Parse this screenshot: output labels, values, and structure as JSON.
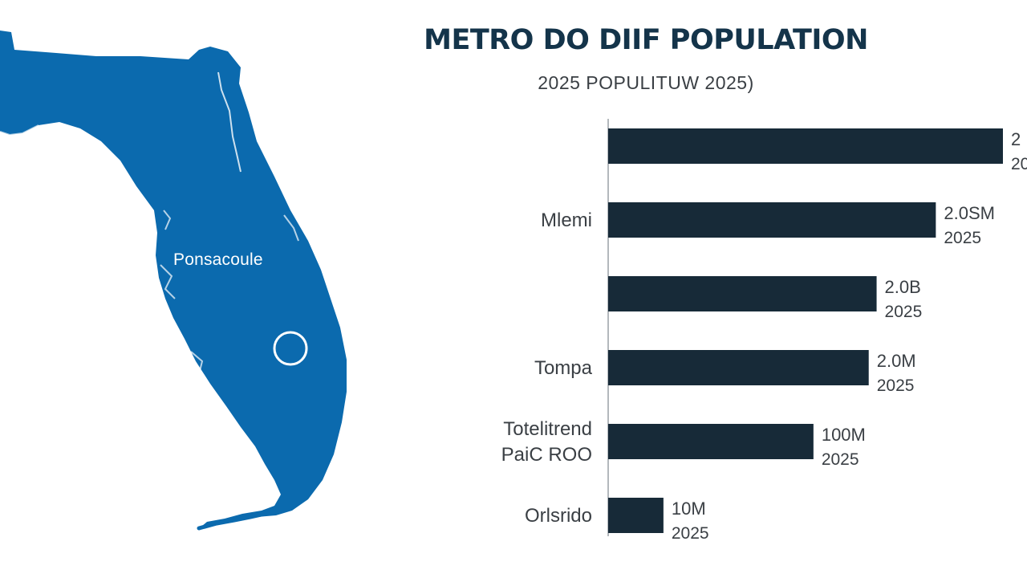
{
  "map": {
    "label": "Ponsacoule",
    "land_color": "#0b6aae",
    "marker_icon": "circle-marker-icon"
  },
  "chart_data": {
    "type": "bar",
    "orientation": "horizontal",
    "title": "METRO DO DIIF POPULATION",
    "subtitle": "2025 POPULITUW 2025)",
    "categories": [
      "",
      "Mlemi",
      "",
      "Tompa",
      "Totelitrend PaiC ROO",
      "Orlsrido"
    ],
    "category_lines": [
      [],
      [
        "Mlemi"
      ],
      [],
      [
        "Tompa"
      ],
      [
        "Totelitrend",
        "PaiC ROO"
      ],
      [
        "Orlsrido"
      ]
    ],
    "values": [
      100,
      83,
      68,
      66,
      52,
      14
    ],
    "value_scale": "relative bar length, % of longest bar",
    "value_labels": [
      "2",
      "2.0SM",
      "2.0B",
      "2.0M",
      "100M",
      "10M"
    ],
    "sublabels": [
      "20",
      "2025",
      "2025",
      "2025",
      "2025",
      "2025"
    ],
    "bar_color": "#172a38",
    "axis_color": "#9aa0a6",
    "label_color": "#3a3f44",
    "grid": false,
    "legend": false
  }
}
